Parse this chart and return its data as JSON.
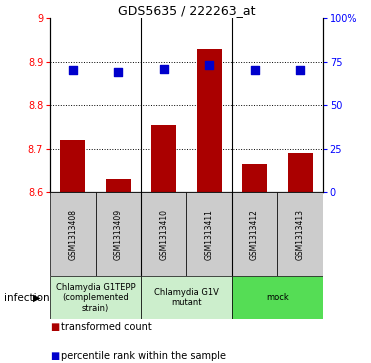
{
  "title": "GDS5635 / 222263_at",
  "samples": [
    "GSM1313408",
    "GSM1313409",
    "GSM1313410",
    "GSM1313411",
    "GSM1313412",
    "GSM1313413"
  ],
  "transformed_counts": [
    8.72,
    8.63,
    8.755,
    8.93,
    8.665,
    8.69
  ],
  "percentile_values_right": [
    70,
    69,
    71,
    73,
    70,
    70
  ],
  "ylim_left": [
    8.6,
    9.0
  ],
  "ylim_right": [
    0,
    100
  ],
  "yticks_left": [
    8.6,
    8.7,
    8.8,
    8.9,
    9.0
  ],
  "ytick_labels_left": [
    "8.6",
    "8.7",
    "8.8",
    "8.9",
    "9"
  ],
  "yticks_right": [
    0,
    25,
    50,
    75,
    100
  ],
  "ytick_labels_right": [
    "0",
    "25",
    "50",
    "75",
    "100%"
  ],
  "grid_lines": [
    8.7,
    8.8,
    8.9
  ],
  "bar_bottom": 8.6,
  "bar_color": "#aa0000",
  "dot_color": "#0000cc",
  "dot_size": 30,
  "bar_width": 0.55,
  "group_labels": [
    "Chlamydia G1TEPP\n(complemented\nstrain)",
    "Chlamydia G1V\nmutant",
    "mock"
  ],
  "group_colors": [
    "#cceecc",
    "#cceecc",
    "#55dd55"
  ],
  "group_ranges": [
    [
      0,
      1
    ],
    [
      2,
      3
    ],
    [
      4,
      5
    ]
  ],
  "sample_box_color": "#cccccc",
  "infection_label": "infection",
  "legend_items": [
    {
      "color": "#aa0000",
      "marker": "s",
      "label": "transformed count"
    },
    {
      "color": "#0000cc",
      "marker": "s",
      "label": "percentile rank within the sample"
    }
  ],
  "title_fontsize": 9,
  "tick_fontsize": 7,
  "sample_fontsize": 5.5,
  "group_fontsize": 6,
  "legend_fontsize": 7
}
